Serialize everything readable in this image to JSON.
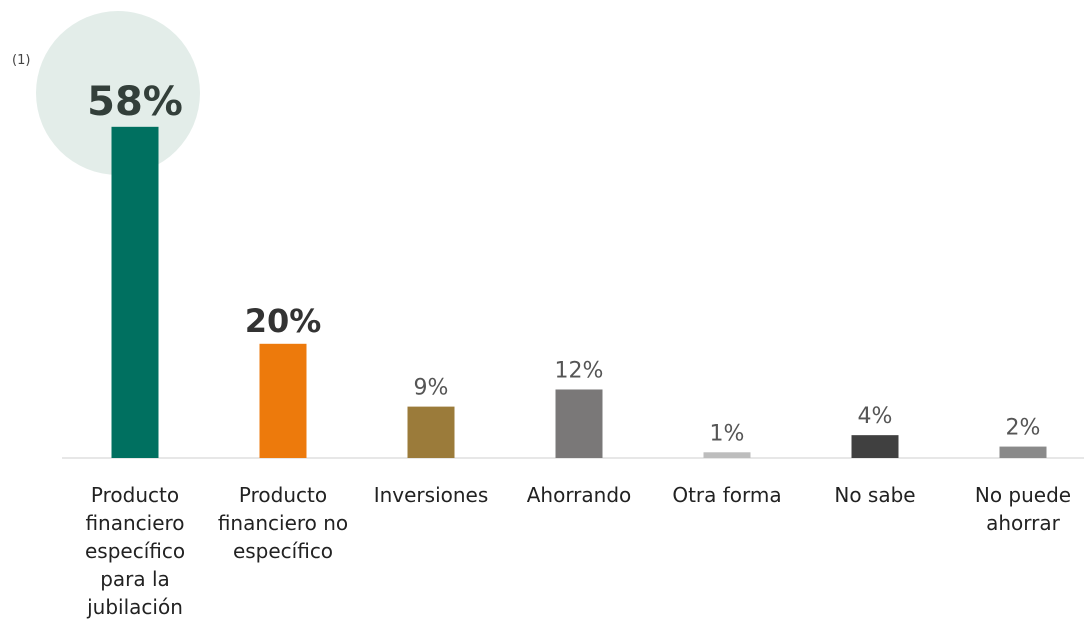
{
  "chart_data": {
    "type": "bar",
    "footnote": "(1)",
    "categories": [
      "Producto financiero específico para la jubilación",
      "Producto financiero no específico",
      "Inversiones",
      "Ahorrando",
      "Otra forma",
      "No sabe",
      "No puede ahorrar"
    ],
    "values": [
      58,
      20,
      9,
      12,
      1,
      4,
      2
    ],
    "value_labels": [
      "58%",
      "20%",
      "9%",
      "12%",
      "1%",
      "4%",
      "2%"
    ],
    "colors": [
      "#007060",
      "#ed7a0c",
      "#9b7b3a",
      "#7a7878",
      "#bdbdbd",
      "#404040",
      "#8a8a8a"
    ]
  }
}
